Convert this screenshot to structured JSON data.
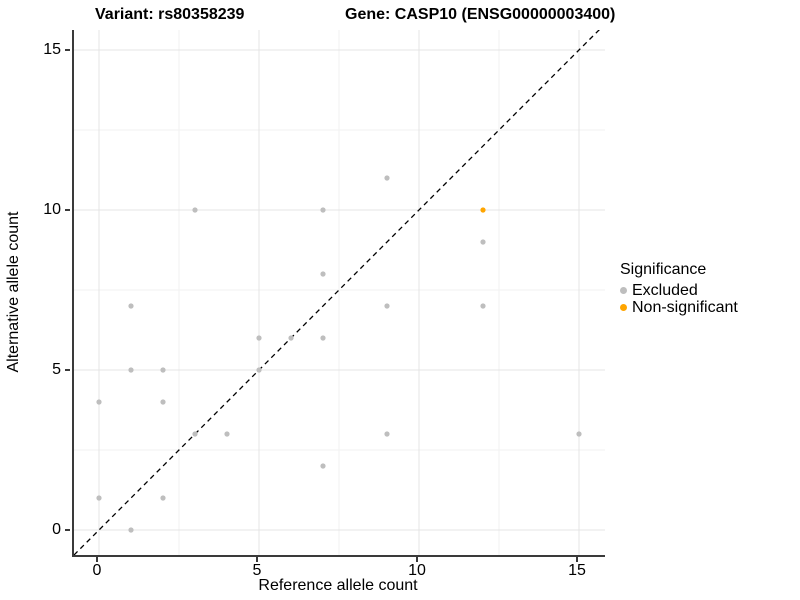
{
  "titles": {
    "variant": "Variant: rs80358239",
    "gene": "Gene: CASP10 (ENSG00000003400)"
  },
  "chart_data": {
    "type": "scatter",
    "xlabel": "Reference allele count",
    "ylabel": "Alternative allele count",
    "xlim": [
      -0.78,
      15.82
    ],
    "ylim": [
      -0.78,
      15.63
    ],
    "x_ticks": [
      0,
      5,
      10,
      15
    ],
    "y_ticks": [
      0,
      5,
      10,
      15
    ],
    "x_minor_ticks": [
      2.5,
      7.5,
      12.5
    ],
    "y_minor_ticks": [
      2.5,
      7.5,
      12.5
    ],
    "grid": true,
    "identity_line": {
      "slope": 1,
      "intercept": 0,
      "style": "dashed",
      "color": "#000000"
    },
    "series": [
      {
        "name": "Excluded",
        "color": "#BEBEBE",
        "points": [
          [
            0,
            1
          ],
          [
            0,
            4
          ],
          [
            1,
            0
          ],
          [
            1,
            5
          ],
          [
            1,
            7
          ],
          [
            2,
            1
          ],
          [
            2,
            4
          ],
          [
            2,
            5
          ],
          [
            3,
            3
          ],
          [
            3,
            10
          ],
          [
            4,
            3
          ],
          [
            5,
            5
          ],
          [
            5,
            6
          ],
          [
            6,
            6
          ],
          [
            7,
            2
          ],
          [
            7,
            6
          ],
          [
            7,
            8
          ],
          [
            7,
            10
          ],
          [
            9,
            3
          ],
          [
            9,
            7
          ],
          [
            9,
            11
          ],
          [
            12,
            7
          ],
          [
            12,
            9
          ],
          [
            15,
            3
          ]
        ]
      },
      {
        "name": "Non-significant",
        "color": "#FFA500",
        "points": [
          [
            12,
            10
          ]
        ]
      }
    ],
    "legend": {
      "title": "Significance",
      "position": "right"
    }
  },
  "colors": {
    "background": "#ffffff",
    "grid_major": "#e4e4e4",
    "grid_minor": "#f2f2f2",
    "axis_line": "#3a3a3a",
    "text": "#000000",
    "excluded_point": "#BEBEBE",
    "non_significant_point": "#FFA500"
  }
}
